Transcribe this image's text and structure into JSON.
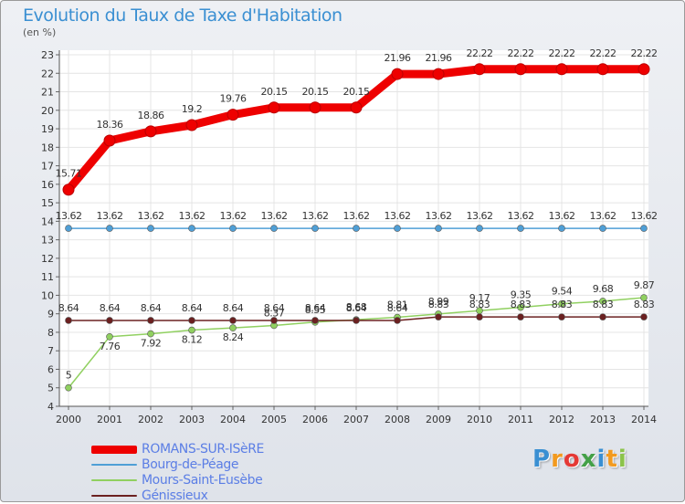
{
  "title": "Evolution du Taux de Taxe d'Habitation",
  "unit": "(en %)",
  "brand": "Proxiti",
  "brand_letters": [
    {
      "ch": "P",
      "color": "#3a8fd2"
    },
    {
      "ch": "r",
      "color": "#f29a1f"
    },
    {
      "ch": "o",
      "color": "#e53935"
    },
    {
      "ch": "x",
      "color": "#43a047"
    },
    {
      "ch": "i",
      "color": "#3a8fd2"
    },
    {
      "ch": "t",
      "color": "#f29a1f"
    },
    {
      "ch": "i",
      "color": "#8bc34a"
    }
  ],
  "chart_data": {
    "type": "line",
    "title": "Evolution du Taux de Taxe d'Habitation",
    "ylabel": "(en %)",
    "xlabel": "",
    "ylim": [
      4,
      23
    ],
    "yticks": [
      4,
      5,
      6,
      7,
      8,
      9,
      10,
      11,
      12,
      13,
      14,
      15,
      16,
      17,
      18,
      19,
      20,
      21,
      22,
      23
    ],
    "categories": [
      "2000",
      "2001",
      "2002",
      "2003",
      "2004",
      "2005",
      "2006",
      "2007",
      "2008",
      "2009",
      "2010",
      "2011",
      "2012",
      "2013",
      "2014"
    ],
    "series": [
      {
        "name": "ROMANS-SUR-ISèRE",
        "color": "#ee0000",
        "values": [
          15.71,
          18.36,
          18.86,
          19.2,
          19.76,
          20.15,
          20.15,
          20.15,
          21.96,
          21.96,
          22.22,
          22.22,
          22.22,
          22.22,
          22.22
        ],
        "labels": [
          "15.71",
          "18.36",
          "18.86",
          "19.2",
          "19.76",
          "20.15",
          "20.15",
          "20.15",
          "21.96",
          "21.96",
          "22.22",
          "22.22",
          "22.22",
          "22.22",
          "22.22"
        ]
      },
      {
        "name": "Bourg-de-Péage",
        "color": "#4f9fd6",
        "values": [
          13.62,
          13.62,
          13.62,
          13.62,
          13.62,
          13.62,
          13.62,
          13.62,
          13.62,
          13.62,
          13.62,
          13.62,
          13.62,
          13.62,
          13.62
        ],
        "labels": [
          "13.62",
          "13.62",
          "13.62",
          "13.62",
          "13.62",
          "13.62",
          "13.62",
          "13.62",
          "13.62",
          "13.62",
          "13.62",
          "13.62",
          "13.62",
          "13.62",
          "13.62"
        ]
      },
      {
        "name": "Mours-Saint-Eusèbe",
        "color": "#90d060",
        "values": [
          5,
          7.76,
          7.92,
          8.12,
          8.24,
          8.37,
          8.55,
          8.68,
          8.81,
          8.99,
          9.17,
          9.35,
          9.54,
          9.68,
          9.87
        ],
        "labels": [
          "5",
          "7.76",
          "7.92",
          "8.12",
          "8.24",
          "8.37",
          "8.55",
          "8.68",
          "8.81",
          "8.99",
          "9.17",
          "9.35",
          "9.54",
          "9.68",
          "9.87"
        ]
      },
      {
        "name": "Génissieux",
        "color": "#6b2020",
        "values": [
          8.64,
          8.64,
          8.64,
          8.64,
          8.64,
          8.64,
          8.64,
          8.64,
          8.64,
          8.83,
          8.83,
          8.83,
          8.83,
          8.83,
          8.83
        ],
        "labels": [
          "8.64",
          "8.64",
          "8.64",
          "8.64",
          "8.64",
          "8.64",
          "8.64",
          "8.64",
          "8.64",
          "8.83",
          "8.83",
          "8.83",
          "8.83",
          "8.83",
          "8.83"
        ]
      }
    ]
  }
}
